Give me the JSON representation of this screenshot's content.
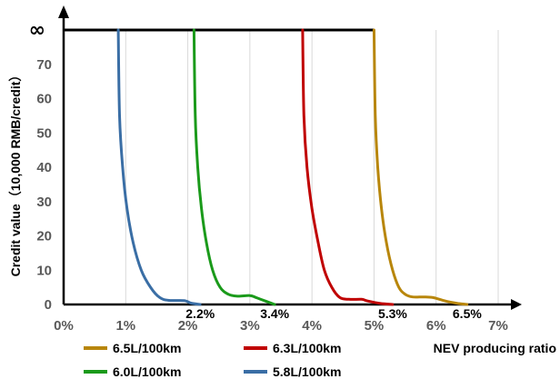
{
  "chart_data": {
    "type": "line",
    "xlabel": "NEV producing ratio",
    "ylabel": "Credit value（10,000 RMB/credit）",
    "x_ticks": [
      "0%",
      "1%",
      "2%",
      "3%",
      "4%",
      "5%",
      "6%",
      "7%"
    ],
    "y_ticks": [
      "0",
      "10",
      "20",
      "30",
      "40",
      "50",
      "60",
      "70",
      "∞"
    ],
    "xlim": [
      0,
      7
    ],
    "ylim": [
      0,
      80
    ],
    "grid": "vertical",
    "legend_position": "bottom",
    "infinity_line": {
      "y": "∞",
      "x_end": 5.0
    },
    "annotations": [
      {
        "text": "2.2%",
        "x": 2.2
      },
      {
        "text": "3.4%",
        "x": 3.4
      },
      {
        "text": "5.3%",
        "x": 5.3
      },
      {
        "text": "6.5%",
        "x": 6.5
      }
    ],
    "series": [
      {
        "name": "6.5L/100km",
        "color": "#b8860b",
        "points": [
          [
            5.0,
            80
          ],
          [
            5.02,
            55
          ],
          [
            5.06,
            40
          ],
          [
            5.12,
            28
          ],
          [
            5.2,
            18
          ],
          [
            5.3,
            10
          ],
          [
            5.4,
            5
          ],
          [
            5.5,
            3
          ],
          [
            5.62,
            2.2
          ],
          [
            5.8,
            2.2
          ],
          [
            5.95,
            2
          ],
          [
            6.15,
            1
          ],
          [
            6.35,
            0.3
          ],
          [
            6.5,
            0
          ]
        ]
      },
      {
        "name": "6.3L/100km",
        "color": "#c00000",
        "points": [
          [
            3.85,
            80
          ],
          [
            3.87,
            55
          ],
          [
            3.92,
            40
          ],
          [
            4.0,
            28
          ],
          [
            4.1,
            18
          ],
          [
            4.2,
            10
          ],
          [
            4.32,
            5
          ],
          [
            4.45,
            2
          ],
          [
            4.6,
            1.5
          ],
          [
            4.8,
            1.5
          ],
          [
            4.9,
            1
          ],
          [
            5.1,
            0.3
          ],
          [
            5.3,
            0
          ]
        ]
      },
      {
        "name": "6.0L/100km",
        "color": "#1a9a1a",
        "points": [
          [
            2.1,
            80
          ],
          [
            2.12,
            55
          ],
          [
            2.16,
            40
          ],
          [
            2.22,
            28
          ],
          [
            2.3,
            18
          ],
          [
            2.4,
            10
          ],
          [
            2.52,
            5
          ],
          [
            2.65,
            3
          ],
          [
            2.8,
            2.4
          ],
          [
            3.0,
            2.6
          ],
          [
            3.1,
            2
          ],
          [
            3.25,
            1
          ],
          [
            3.4,
            0
          ]
        ]
      },
      {
        "name": "5.8L/100km",
        "color": "#3a6ea5",
        "points": [
          [
            0.88,
            80
          ],
          [
            0.9,
            55
          ],
          [
            0.95,
            40
          ],
          [
            1.02,
            28
          ],
          [
            1.12,
            18
          ],
          [
            1.25,
            10
          ],
          [
            1.4,
            5
          ],
          [
            1.55,
            2
          ],
          [
            1.7,
            1.2
          ],
          [
            1.95,
            1.1
          ],
          [
            2.05,
            0.4
          ],
          [
            2.2,
            0
          ]
        ]
      }
    ]
  }
}
